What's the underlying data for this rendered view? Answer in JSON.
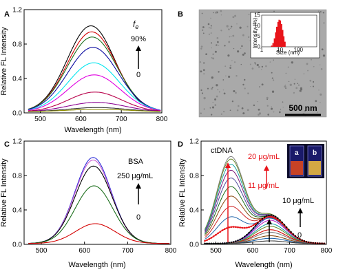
{
  "panel_labels": {
    "A": "A",
    "B": "B",
    "C": "C",
    "D": "D"
  },
  "annotations": {
    "A_fe": "f",
    "A_fe_sub": "e",
    "A_top": "90%",
    "A_bottom": "0",
    "C_name": "BSA",
    "C_top": "250 μg/mL",
    "C_bottom": "0",
    "D_name": "ctDNA",
    "D_red_top": "20 μg/mL",
    "D_red_bottom": "11 μg/mL",
    "D_black_top": "10 μg/mL",
    "D_black_bottom": "0",
    "D_vial_a": "a",
    "D_vial_b": "b"
  },
  "micrograph": {
    "scale_bar": "500 nm",
    "inset_ylabel": "Intensity (%)",
    "inset_xlabel": "Size (nm)",
    "inset_yticks": [
      "0",
      "5",
      "10",
      "15"
    ],
    "inset_xticks": [
      "1",
      "10",
      "100"
    ],
    "size_distribution": {
      "sizes_nm": [
        3.5,
        4.2,
        5.0,
        5.8,
        6.7,
        7.8,
        9.0,
        10.4,
        12.0,
        13.9,
        16.0,
        18.5
      ],
      "intensity_pct": [
        0.6,
        1.8,
        4.0,
        6.8,
        9.5,
        11.8,
        12.8,
        12.5,
        10.8,
        8.0,
        5.0,
        2.4
      ]
    }
  },
  "colors": {
    "series_A": [
      "#000000",
      "#d40000",
      "#1b6e1b",
      "#0a0aa0",
      "#00e5ee",
      "#e000e0",
      "#b8004a",
      "#8a0090",
      "#3c3c3c",
      "#8d8d00"
    ],
    "series_C": [
      "#2e2ed8",
      "#cc5fcf",
      "#000000",
      "#1b6e1b",
      "#d40000"
    ],
    "series_D_dna": [
      "#808080",
      "#6a8a2a",
      "#1aa1a1",
      "#7a1a7a",
      "#4c4c9c",
      "#1b6e1b",
      "#8a4a10",
      "#cc2222",
      "#2266aa",
      "#117711"
    ],
    "series_D_low": [
      "#000000",
      "#2f2fc0",
      "#c020c0",
      "#1aa1a1",
      "#6a8a2a",
      "#d40000",
      "#808080",
      "#8a4a10",
      "#2266aa",
      "#3c3c3c"
    ]
  },
  "chart_data": [
    {
      "panel": "A",
      "type": "line",
      "xlabel": "Wavelength (nm)",
      "ylabel": "Relative FL Intensity",
      "xlim": [
        460,
        800
      ],
      "ylim": [
        0,
        1.2
      ],
      "xticks": [
        500,
        600,
        700,
        800
      ],
      "yticks": [
        0.0,
        0.4,
        0.8,
        1.2
      ],
      "series": [
        {
          "peak_nm": 625,
          "peak": 1.0,
          "width": 52
        },
        {
          "peak_nm": 627,
          "peak": 0.93,
          "width": 53
        },
        {
          "peak_nm": 628,
          "peak": 0.87,
          "width": 54
        },
        {
          "peak_nm": 630,
          "peak": 0.75,
          "width": 55
        },
        {
          "peak_nm": 632,
          "peak": 0.57,
          "width": 56
        },
        {
          "peak_nm": 633,
          "peak": 0.43,
          "width": 57
        },
        {
          "peak_nm": 635,
          "peak": 0.23,
          "width": 58
        },
        {
          "peak_nm": 638,
          "peak": 0.11,
          "width": 62
        },
        {
          "peak_nm": 640,
          "peak": 0.05,
          "width": 65
        },
        {
          "peak_nm": 642,
          "peak": 0.03,
          "width": 68
        }
      ]
    },
    {
      "panel": "C",
      "type": "line",
      "xlabel": "Wavelength (nm)",
      "ylabel": "Relative FL Intensity",
      "xlim": [
        460,
        800
      ],
      "ylim": [
        0,
        1.2
      ],
      "xticks": [
        500,
        600,
        700,
        800
      ],
      "yticks": [
        0.0,
        0.4,
        0.8,
        1.2
      ],
      "series": [
        {
          "peak_nm": 620,
          "peak": 1.0,
          "width": 44
        },
        {
          "peak_nm": 620,
          "peak": 0.97,
          "width": 44
        },
        {
          "peak_nm": 621,
          "peak": 0.9,
          "width": 45
        },
        {
          "peak_nm": 622,
          "peak": 0.67,
          "width": 46
        },
        {
          "peak_nm": 625,
          "peak": 0.23,
          "width": 48
        }
      ]
    },
    {
      "panel": "D",
      "type": "line",
      "xlabel": "Wavelength (nm)",
      "ylabel": "Relative FL Intensity",
      "xlim": [
        460,
        800
      ],
      "ylim": [
        0,
        1.2
      ],
      "xticks": [
        500,
        600,
        700,
        800
      ],
      "yticks": [
        0.0,
        0.4,
        0.8,
        1.2
      ],
      "dna_series": [
        {
          "p1": 1.0,
          "p2": 0.33
        },
        {
          "p1": 0.97,
          "p2": 0.33
        },
        {
          "p1": 0.91,
          "p2": 0.32
        },
        {
          "p1": 0.84,
          "p2": 0.32
        },
        {
          "p1": 0.75,
          "p2": 0.31
        },
        {
          "p1": 0.65,
          "p2": 0.31
        },
        {
          "p1": 0.54,
          "p2": 0.3
        },
        {
          "p1": 0.42,
          "p2": 0.3
        },
        {
          "p1": 0.3,
          "p2": 0.29
        },
        {
          "p1": 0.18,
          "p2": 0.31
        }
      ],
      "low_series": [
        0.33,
        0.3,
        0.27,
        0.23,
        0.2,
        0.16,
        0.13,
        0.09,
        0.06,
        0.03
      ],
      "dna_peak_nm": 540,
      "low_peak_nm": 648
    }
  ]
}
